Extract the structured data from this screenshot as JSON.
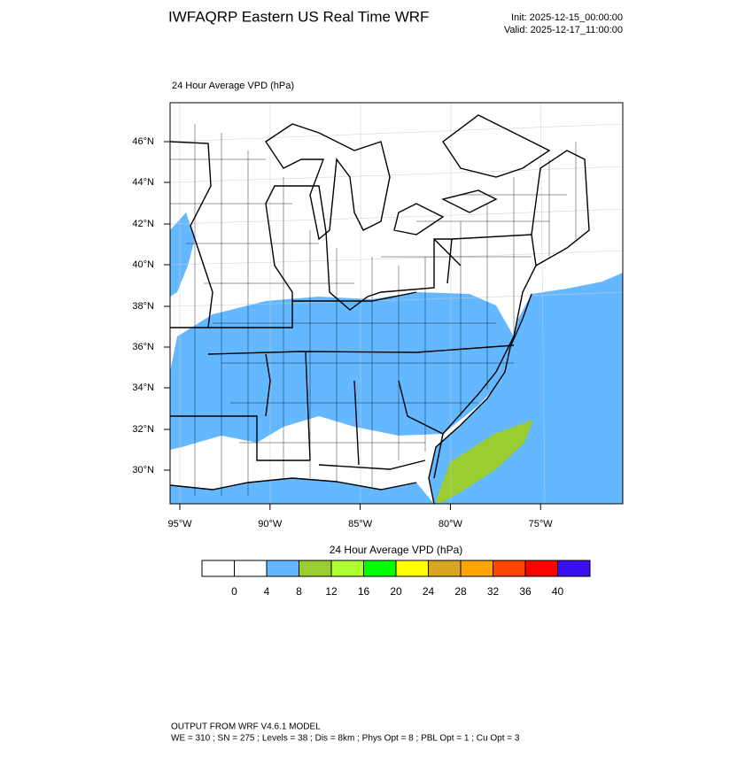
{
  "header": {
    "title": "IWFAQRP Eastern US Real Time WRF",
    "init": "Init: 2025-12-15_00:00:00",
    "valid": "Valid: 2025-12-17_11:00:00"
  },
  "map": {
    "subtitle": "24 Hour Average VPD   (hPa)",
    "lat_labels": [
      "46°N",
      "44°N",
      "42°N",
      "40°N",
      "38°N",
      "36°N",
      "34°N",
      "32°N",
      "30°N"
    ],
    "lon_labels": [
      "95°W",
      "90°W",
      "85°W",
      "80°W",
      "75°W"
    ]
  },
  "colorbar": {
    "title": "24 Hour Average VPD  (hPa)",
    "labels": [
      0,
      4,
      8,
      12,
      16,
      20,
      24,
      28,
      32,
      36,
      40
    ],
    "colors": [
      "#ffffff",
      "#ffffff",
      "#63b8ff",
      "#9acd32",
      "#adff2f",
      "#00ff00",
      "#ffff00",
      "#daa520",
      "#ffa500",
      "#ff4500",
      "#ff0000",
      "#3a0ff0"
    ]
  },
  "footer": {
    "line1": "OUTPUT FROM WRF V4.6.1 MODEL",
    "line2": "WE = 310 ; SN = 275 ; Levels = 38 ; Dis = 8km ; Phys Opt = 8 ; PBL Opt = 1 ; Cu Opt = 3"
  }
}
